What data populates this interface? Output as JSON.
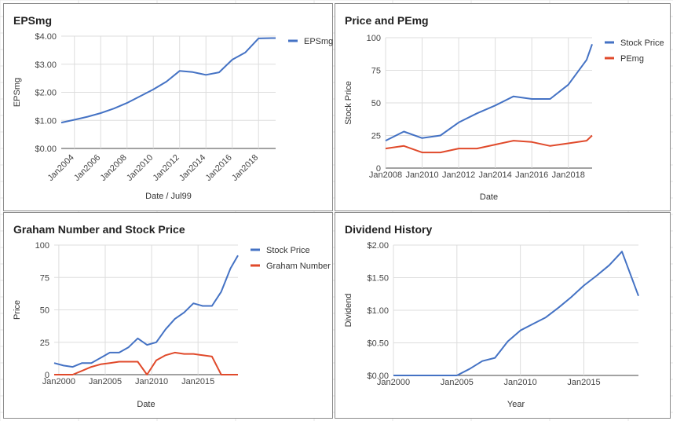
{
  "colors": {
    "blue": "#4472c4",
    "red": "#e04a2b",
    "grid": "#dddddd",
    "baseline": "#444444"
  },
  "chart_data": [
    {
      "type": "line",
      "title": "EPSmg",
      "xlabel": "Date / Jul99",
      "ylabel": "EPSmg",
      "xlim": [
        2003.0,
        2019.3
      ],
      "ylim": [
        0,
        4
      ],
      "yticks": [
        0,
        1,
        2,
        3,
        4
      ],
      "ytick_labels": [
        "$0.00",
        "$1.00",
        "$2.00",
        "$3.00",
        "$4.00"
      ],
      "xtick_values": [
        2004,
        2006,
        2008,
        2010,
        2012,
        2014,
        2016,
        2018
      ],
      "xtick_labels": [
        "Jan2004",
        "Jan2006",
        "Jan2008",
        "Jan2010",
        "Jan2012",
        "Jan2014",
        "Jan2016",
        "Jan2018"
      ],
      "xtick_rotated": true,
      "grid": true,
      "legend_position": "right",
      "series": [
        {
          "name": "EPSmg",
          "color": "#4472c4",
          "x": [
            2003.0,
            2004.0,
            2005.0,
            2006.0,
            2007.0,
            2008.0,
            2009.0,
            2010.0,
            2011.0,
            2012.0,
            2013.0,
            2014.0,
            2015.0,
            2016.0,
            2017.0,
            2018.0,
            2019.0,
            2019.3
          ],
          "y": [
            0.92,
            1.02,
            1.13,
            1.26,
            1.42,
            1.62,
            1.86,
            2.1,
            2.38,
            2.76,
            2.72,
            2.62,
            2.71,
            3.16,
            3.42,
            3.92,
            3.93,
            3.93
          ]
        }
      ]
    },
    {
      "type": "line",
      "title": "Price and PEmg",
      "xlabel": "Date",
      "ylabel": "Stock Price",
      "xlim": [
        2008.0,
        2019.3
      ],
      "ylim": [
        0,
        100
      ],
      "yticks": [
        0,
        25,
        50,
        75,
        100
      ],
      "ytick_labels": [
        "0",
        "25",
        "50",
        "75",
        "100"
      ],
      "xtick_values": [
        2008,
        2010,
        2012,
        2014,
        2016,
        2018
      ],
      "xtick_labels": [
        "Jan2008",
        "Jan2010",
        "Jan2012",
        "Jan2014",
        "Jan2016",
        "Jan2018"
      ],
      "xtick_rotated": false,
      "grid": true,
      "legend_position": "right",
      "series": [
        {
          "name": "Stock Price",
          "color": "#4472c4",
          "x": [
            2008.0,
            2009.0,
            2010.0,
            2011.0,
            2012.0,
            2013.0,
            2014.0,
            2015.0,
            2016.0,
            2017.0,
            2018.0,
            2019.0,
            2019.3
          ],
          "y": [
            21,
            28,
            23,
            25,
            35,
            42,
            48,
            55,
            53,
            53,
            64,
            83,
            95
          ]
        },
        {
          "name": "PEmg",
          "color": "#e04a2b",
          "x": [
            2008.0,
            2009.0,
            2010.0,
            2011.0,
            2012.0,
            2013.0,
            2014.0,
            2015.0,
            2016.0,
            2017.0,
            2018.0,
            2019.0,
            2019.3
          ],
          "y": [
            15,
            17,
            12,
            12,
            15,
            15,
            18,
            21,
            20,
            17,
            19,
            21,
            25
          ]
        }
      ]
    },
    {
      "type": "line",
      "title": "Graham Number and Stock Price",
      "xlabel": "Date",
      "ylabel": "Price",
      "xlim": [
        1999.5,
        2019.3
      ],
      "ylim": [
        0,
        100
      ],
      "yticks": [
        0,
        25,
        50,
        75,
        100
      ],
      "ytick_labels": [
        "0",
        "25",
        "50",
        "75",
        "100"
      ],
      "xtick_values": [
        2000,
        2005,
        2010,
        2015
      ],
      "xtick_labels": [
        "Jan2000",
        "Jan2005",
        "Jan2010",
        "Jan2015"
      ],
      "xtick_rotated": false,
      "grid": true,
      "legend_position": "right",
      "series": [
        {
          "name": "Stock Price",
          "color": "#4472c4",
          "x": [
            1999.5,
            2000.5,
            2001.5,
            2002.5,
            2003.5,
            2004.5,
            2005.5,
            2006.5,
            2007.5,
            2008.5,
            2009.5,
            2010.5,
            2011.5,
            2012.5,
            2013.5,
            2014.5,
            2015.5,
            2016.5,
            2017.5,
            2018.5,
            2019.3
          ],
          "y": [
            9,
            7,
            6,
            9,
            9,
            13,
            17,
            17,
            21,
            28,
            23,
            25,
            35,
            43,
            48,
            55,
            53,
            53,
            64,
            82,
            92
          ]
        },
        {
          "name": "Graham Number",
          "color": "#e04a2b",
          "x": [
            1999.5,
            2000.5,
            2001.5,
            2002.5,
            2003.5,
            2004.5,
            2005.5,
            2006.5,
            2007.5,
            2008.5,
            2009.5,
            2010.5,
            2011.5,
            2012.5,
            2013.5,
            2014.5,
            2015.5,
            2016.5,
            2017.5,
            2018.5,
            2019.3
          ],
          "y": [
            0,
            0,
            0,
            3,
            6,
            8,
            9,
            10,
            10,
            10,
            0,
            11,
            15,
            17,
            16,
            16,
            15,
            14,
            0,
            0,
            0
          ]
        }
      ]
    },
    {
      "type": "line",
      "title": "Dividend History",
      "xlabel": "Year",
      "ylabel": "Dividend",
      "xlim": [
        2000.0,
        2019.3
      ],
      "ylim": [
        0,
        2
      ],
      "yticks": [
        0,
        0.5,
        1,
        1.5,
        2
      ],
      "ytick_labels": [
        "$0.00",
        "$0.50",
        "$1.00",
        "$1.50",
        "$2.00"
      ],
      "xtick_values": [
        2000,
        2005,
        2010,
        2015
      ],
      "xtick_labels": [
        "Jan2000",
        "Jan2005",
        "Jan2010",
        "Jan2015"
      ],
      "xtick_rotated": false,
      "grid": true,
      "legend_position": "none",
      "series": [
        {
          "name": "",
          "color": "#4472c4",
          "x": [
            2000.0,
            2001.0,
            2002.0,
            2003.0,
            2004.0,
            2005.0,
            2006.0,
            2007.0,
            2008.0,
            2009.0,
            2010.0,
            2011.0,
            2012.0,
            2013.0,
            2014.0,
            2015.0,
            2016.0,
            2017.0,
            2018.0,
            2019.3
          ],
          "y": [
            0,
            0,
            0,
            0,
            0,
            0,
            0.1,
            0.22,
            0.27,
            0.52,
            0.69,
            0.79,
            0.89,
            1.04,
            1.2,
            1.38,
            1.53,
            1.69,
            1.9,
            1.22
          ]
        }
      ]
    }
  ]
}
